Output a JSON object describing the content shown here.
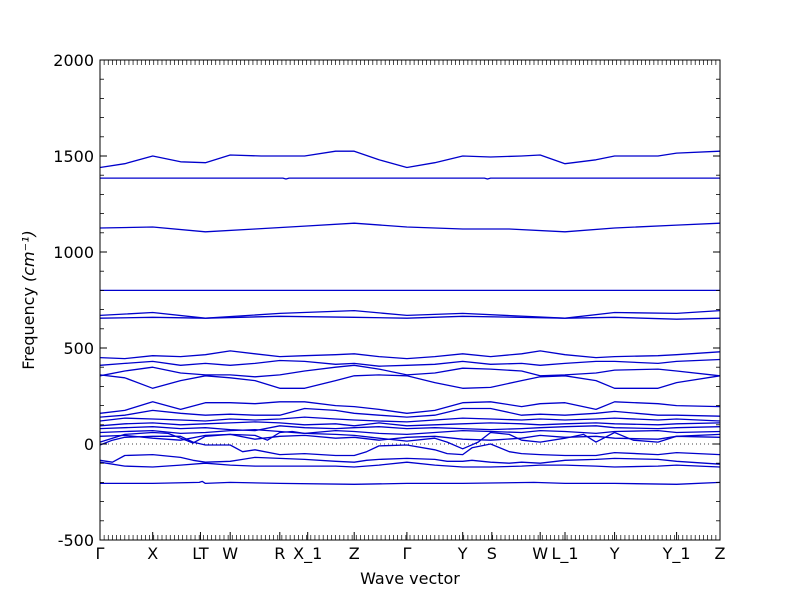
{
  "chart_data": {
    "type": "line",
    "title": "",
    "xlabel": "Wave vector",
    "ylabel": "Frequency ",
    "ylabel_unit": "(cm⁻¹)",
    "ylim": [
      -500,
      2000
    ],
    "yticks": [
      -500,
      0,
      500,
      1000,
      1500,
      2000
    ],
    "xlim": [
      0,
      1
    ],
    "xticks": [
      {
        "label": "Γ",
        "x": 0.0
      },
      {
        "label": "X",
        "x": 0.085
      },
      {
        "label": "LT",
        "x": 0.162
      },
      {
        "label": "W",
        "x": 0.21
      },
      {
        "label": "R",
        "x": 0.29
      },
      {
        "label": "X_1",
        "x": 0.335
      },
      {
        "label": "Z",
        "x": 0.41
      },
      {
        "label": "Γ",
        "x": 0.495
      },
      {
        "label": "Y",
        "x": 0.585
      },
      {
        "label": "S",
        "x": 0.632
      },
      {
        "label": "W",
        "x": 0.71
      },
      {
        "label": "L_1",
        "x": 0.75
      },
      {
        "label": "Y",
        "x": 0.83
      },
      {
        "label": "Y_1",
        "x": 0.93
      },
      {
        "label": "Z",
        "x": 1.0
      }
    ],
    "zero_line": {
      "y": 0,
      "style": "dotted"
    },
    "line_color": "#0000cc",
    "series": [
      {
        "x": [
          0,
          0.04,
          0.085,
          0.13,
          0.17,
          0.21,
          0.26,
          0.33,
          0.38,
          0.41,
          0.45,
          0.495,
          0.54,
          0.585,
          0.63,
          0.68,
          0.71,
          0.75,
          0.8,
          0.83,
          0.9,
          0.93,
          1.0
        ],
        "y": [
          1440,
          1460,
          1500,
          1470,
          1465,
          1505,
          1500,
          1500,
          1525,
          1525,
          1480,
          1440,
          1465,
          1500,
          1495,
          1500,
          1505,
          1460,
          1480,
          1500,
          1500,
          1515,
          1525
        ]
      },
      {
        "x": [
          0,
          0.295,
          0.3,
          0.305,
          0.62,
          0.625,
          0.63,
          1.0
        ],
        "y": [
          1385,
          1385,
          1380,
          1385,
          1385,
          1380,
          1385,
          1385
        ]
      },
      {
        "x": [
          0,
          0.085,
          0.17,
          0.25,
          0.33,
          0.41,
          0.495,
          0.585,
          0.66,
          0.75,
          0.83,
          0.93,
          1.0
        ],
        "y": [
          1125,
          1130,
          1105,
          1120,
          1135,
          1150,
          1130,
          1120,
          1120,
          1105,
          1125,
          1140,
          1150
        ]
      },
      {
        "x": [
          0,
          0.5,
          1.0
        ],
        "y": [
          800,
          800,
          800
        ]
      },
      {
        "x": [
          0,
          0.085,
          0.17,
          0.29,
          0.41,
          0.495,
          0.585,
          0.75,
          0.83,
          0.93,
          1.0
        ],
        "y": [
          670,
          685,
          655,
          680,
          695,
          670,
          680,
          655,
          685,
          680,
          695
        ]
      },
      {
        "x": [
          0,
          0.085,
          0.17,
          0.29,
          0.41,
          0.495,
          0.585,
          0.75,
          0.83,
          0.93,
          1.0
        ],
        "y": [
          655,
          660,
          655,
          665,
          660,
          655,
          665,
          655,
          660,
          650,
          655
        ]
      },
      {
        "x": [
          0,
          0.04,
          0.085,
          0.13,
          0.17,
          0.21,
          0.25,
          0.29,
          0.33,
          0.38,
          0.41,
          0.45,
          0.495,
          0.54,
          0.585,
          0.63,
          0.68,
          0.71,
          0.75,
          0.8,
          0.83,
          0.9,
          0.93,
          1.0
        ],
        "y": [
          450,
          445,
          460,
          455,
          465,
          485,
          470,
          455,
          460,
          465,
          470,
          455,
          445,
          455,
          470,
          455,
          470,
          485,
          465,
          450,
          455,
          460,
          465,
          480
        ]
      },
      {
        "x": [
          0,
          0.04,
          0.085,
          0.13,
          0.17,
          0.21,
          0.25,
          0.29,
          0.33,
          0.38,
          0.41,
          0.45,
          0.495,
          0.54,
          0.585,
          0.63,
          0.68,
          0.71,
          0.75,
          0.8,
          0.83,
          0.9,
          0.93,
          1.0
        ],
        "y": [
          410,
          420,
          430,
          410,
          420,
          410,
          420,
          435,
          430,
          415,
          420,
          405,
          410,
          415,
          430,
          415,
          420,
          410,
          420,
          430,
          430,
          420,
          430,
          440
        ]
      },
      {
        "x": [
          0,
          0.04,
          0.085,
          0.13,
          0.17,
          0.21,
          0.25,
          0.29,
          0.33,
          0.38,
          0.41,
          0.45,
          0.495,
          0.54,
          0.585,
          0.63,
          0.68,
          0.71,
          0.75,
          0.8,
          0.83,
          0.9,
          0.93,
          1.0
        ],
        "y": [
          355,
          380,
          400,
          370,
          360,
          360,
          350,
          360,
          380,
          400,
          410,
          390,
          360,
          370,
          395,
          390,
          380,
          355,
          360,
          370,
          385,
          390,
          380,
          355
        ]
      },
      {
        "x": [
          0,
          0.04,
          0.085,
          0.13,
          0.17,
          0.21,
          0.25,
          0.29,
          0.33,
          0.38,
          0.41,
          0.45,
          0.495,
          0.54,
          0.585,
          0.63,
          0.68,
          0.71,
          0.75,
          0.8,
          0.83,
          0.9,
          0.93,
          1.0
        ],
        "y": [
          360,
          345,
          290,
          330,
          355,
          345,
          330,
          290,
          290,
          330,
          355,
          360,
          355,
          320,
          290,
          295,
          330,
          350,
          355,
          330,
          290,
          290,
          320,
          355
        ]
      },
      {
        "x": [
          0,
          0.04,
          0.085,
          0.13,
          0.17,
          0.21,
          0.25,
          0.29,
          0.33,
          0.38,
          0.41,
          0.45,
          0.495,
          0.54,
          0.585,
          0.63,
          0.68,
          0.71,
          0.75,
          0.8,
          0.83,
          0.9,
          0.93,
          1.0
        ],
        "y": [
          160,
          175,
          220,
          180,
          215,
          215,
          210,
          220,
          220,
          200,
          195,
          180,
          160,
          175,
          215,
          220,
          195,
          210,
          215,
          180,
          220,
          210,
          200,
          195
        ]
      },
      {
        "x": [
          0,
          0.04,
          0.085,
          0.13,
          0.17,
          0.21,
          0.25,
          0.29,
          0.33,
          0.38,
          0.41,
          0.45,
          0.495,
          0.54,
          0.585,
          0.63,
          0.68,
          0.71,
          0.75,
          0.8,
          0.83,
          0.9,
          0.93,
          1.0
        ],
        "y": [
          140,
          150,
          175,
          160,
          150,
          155,
          150,
          150,
          185,
          175,
          160,
          150,
          140,
          150,
          185,
          185,
          150,
          155,
          150,
          160,
          170,
          150,
          150,
          145
        ]
      },
      {
        "x": [
          0,
          0.04,
          0.085,
          0.13,
          0.17,
          0.21,
          0.25,
          0.29,
          0.33,
          0.38,
          0.41,
          0.45,
          0.495,
          0.54,
          0.585,
          0.63,
          0.68,
          0.71,
          0.75,
          0.8,
          0.83,
          0.9,
          0.93,
          1.0
        ],
        "y": [
          120,
          135,
          130,
          125,
          120,
          130,
          125,
          130,
          140,
          130,
          125,
          120,
          115,
          125,
          135,
          130,
          125,
          130,
          125,
          130,
          135,
          125,
          130,
          120
        ]
      },
      {
        "x": [
          0,
          0.04,
          0.085,
          0.13,
          0.17,
          0.21,
          0.25,
          0.29,
          0.33,
          0.38,
          0.41,
          0.45,
          0.495,
          0.54,
          0.585,
          0.63,
          0.68,
          0.71,
          0.75,
          0.8,
          0.83,
          0.9,
          0.93,
          1.0
        ],
        "y": [
          95,
          105,
          110,
          100,
          105,
          110,
          115,
          110,
          100,
          105,
          95,
          110,
          95,
          100,
          105,
          110,
          105,
          100,
          105,
          110,
          105,
          100,
          105,
          110
        ]
      },
      {
        "x": [
          0,
          0.04,
          0.085,
          0.13,
          0.17,
          0.21,
          0.25,
          0.29,
          0.33,
          0.38,
          0.41,
          0.45,
          0.495,
          0.54,
          0.585,
          0.63,
          0.68,
          0.71,
          0.75,
          0.8,
          0.83,
          0.9,
          0.93,
          1.0
        ],
        "y": [
          80,
          85,
          90,
          80,
          85,
          75,
          70,
          95,
          85,
          80,
          85,
          90,
          80,
          85,
          80,
          75,
          80,
          85,
          90,
          95,
          85,
          80,
          85,
          90
        ]
      },
      {
        "x": [
          0,
          0.04,
          0.085,
          0.13,
          0.17,
          0.21,
          0.25,
          0.29,
          0.33,
          0.38,
          0.41,
          0.45,
          0.495,
          0.54,
          0.585,
          0.63,
          0.68,
          0.71,
          0.75,
          0.8,
          0.83,
          0.9,
          0.93,
          1.0
        ],
        "y": [
          60,
          65,
          70,
          55,
          60,
          70,
          75,
          65,
          55,
          70,
          65,
          55,
          50,
          60,
          70,
          65,
          60,
          70,
          65,
          55,
          65,
          70,
          60,
          65
        ]
      },
      {
        "x": [
          0,
          0.04,
          0.085,
          0.13,
          0.17,
          0.21,
          0.25,
          0.29,
          0.33,
          0.38,
          0.41,
          0.45,
          0.495,
          0.54,
          0.585,
          0.63,
          0.68,
          0.71,
          0.75,
          0.8,
          0.83,
          0.9,
          0.93,
          1.0
        ],
        "y": [
          40,
          45,
          30,
          20,
          45,
          50,
          25,
          40,
          45,
          30,
          35,
          20,
          35,
          40,
          25,
          20,
          30,
          45,
          35,
          40,
          30,
          25,
          40,
          35
        ]
      },
      {
        "x": [
          0,
          0.04,
          0.085,
          0.11,
          0.13,
          0.15,
          0.17,
          0.21,
          0.25,
          0.27,
          0.29,
          0.31,
          0.33,
          0.38,
          0.41,
          0.45,
          0.495,
          0.54,
          0.56,
          0.585,
          0.61,
          0.63,
          0.66,
          0.68,
          0.71,
          0.75,
          0.78,
          0.8,
          0.83,
          0.86,
          0.9,
          0.93,
          1.0
        ],
        "y": [
          10,
          50,
          60,
          55,
          30,
          5,
          40,
          50,
          45,
          20,
          60,
          65,
          55,
          50,
          45,
          30,
          15,
          30,
          10,
          -25,
          10,
          60,
          50,
          20,
          10,
          30,
          50,
          10,
          60,
          20,
          10,
          40,
          50
        ]
      },
      {
        "x": [
          0,
          0.02,
          0.04,
          0.085,
          0.13,
          0.15,
          0.17,
          0.21,
          0.23,
          0.25,
          0.29,
          0.33,
          0.38,
          0.41,
          0.43,
          0.45,
          0.495,
          0.54,
          0.56,
          0.585,
          0.6,
          0.63,
          0.66,
          0.68,
          0.71,
          0.75,
          0.8,
          0.83,
          0.9,
          0.93,
          1.0
        ],
        "y": [
          -5,
          20,
          35,
          40,
          40,
          10,
          -5,
          -5,
          -40,
          -30,
          -55,
          -50,
          -60,
          -60,
          -40,
          -10,
          -5,
          -30,
          -50,
          -55,
          -20,
          0,
          -40,
          -50,
          -55,
          -60,
          -60,
          -45,
          -55,
          -45,
          -55
        ]
      },
      {
        "x": [
          0,
          0.02,
          0.04,
          0.085,
          0.13,
          0.15,
          0.17,
          0.21,
          0.23,
          0.25,
          0.29,
          0.33,
          0.38,
          0.41,
          0.43,
          0.45,
          0.495,
          0.54,
          0.56,
          0.585,
          0.6,
          0.63,
          0.66,
          0.68,
          0.71,
          0.75,
          0.8,
          0.83,
          0.9,
          0.93,
          1.0
        ],
        "y": [
          -85,
          -95,
          -60,
          -55,
          -70,
          -85,
          -95,
          -90,
          -80,
          -70,
          -75,
          -80,
          -90,
          -95,
          -85,
          -80,
          -75,
          -80,
          -90,
          -90,
          -85,
          -95,
          -100,
          -95,
          -100,
          -85,
          -80,
          -75,
          -80,
          -90,
          -105
        ]
      },
      {
        "x": [
          0,
          0.04,
          0.085,
          0.13,
          0.17,
          0.21,
          0.25,
          0.29,
          0.33,
          0.38,
          0.41,
          0.45,
          0.495,
          0.54,
          0.585,
          0.63,
          0.68,
          0.71,
          0.75,
          0.8,
          0.83,
          0.9,
          0.93,
          1.0
        ],
        "y": [
          -95,
          -115,
          -120,
          -110,
          -100,
          -110,
          -115,
          -115,
          -115,
          -115,
          -120,
          -110,
          -95,
          -110,
          -120,
          -120,
          -115,
          -110,
          -110,
          -115,
          -120,
          -115,
          -110,
          -120
        ]
      },
      {
        "x": [
          0,
          0.085,
          0.16,
          0.165,
          0.17,
          0.21,
          0.29,
          0.41,
          0.495,
          0.585,
          0.7,
          0.75,
          0.83,
          0.93,
          1.0
        ],
        "y": [
          -205,
          -205,
          -200,
          -195,
          -205,
          -200,
          -205,
          -210,
          -205,
          -205,
          -200,
          -205,
          -205,
          -210,
          -200
        ]
      }
    ]
  }
}
